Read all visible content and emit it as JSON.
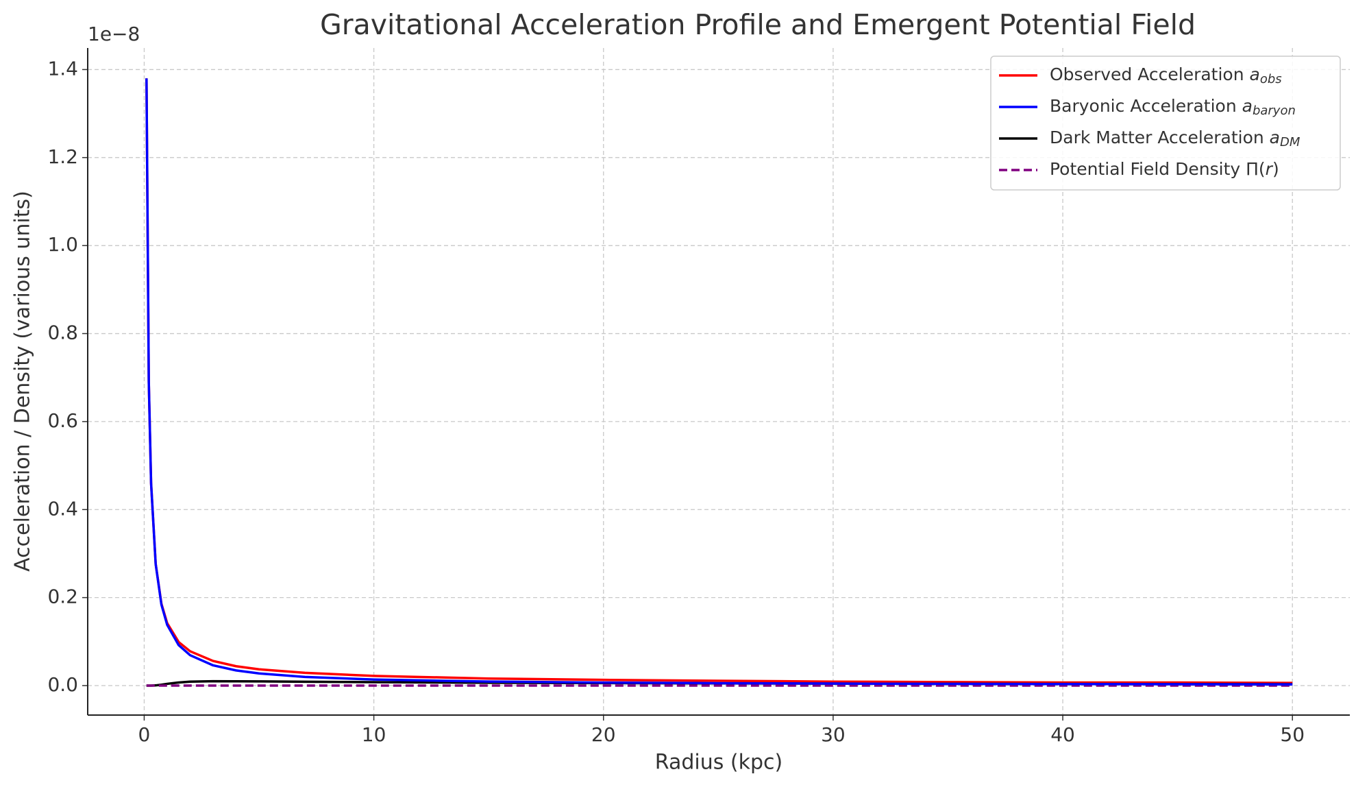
{
  "chart_data": {
    "type": "line",
    "title": "Gravitational Acceleration Profile and Emergent Potential Field",
    "x_label": "Radius (kpc)",
    "y_label": "Acceleration / Density (various units)",
    "y_offset_label": "1e−8",
    "x": [
      0.1,
      0.2,
      0.3,
      0.5,
      0.75,
      1,
      1.5,
      2,
      3,
      4,
      5,
      7,
      10,
      15,
      20,
      25,
      30,
      35,
      40,
      45,
      50
    ],
    "series": [
      {
        "name": "Observed Acceleration a_{obs}",
        "color": "#ff0000",
        "dash": false,
        "values": [
          1.38,
          0.69,
          0.46,
          0.2765,
          0.186,
          0.142,
          0.099,
          0.078,
          0.056,
          0.044,
          0.037,
          0.029,
          0.022,
          0.016,
          0.013,
          0.011,
          0.009,
          0.008,
          0.007,
          0.007,
          0.006
        ]
      },
      {
        "name": "Baryonic Acceleration a_{baryon}",
        "color": "#0000ff",
        "dash": false,
        "values": [
          1.38,
          0.69,
          0.46,
          0.276,
          0.184,
          0.138,
          0.092,
          0.069,
          0.046,
          0.0345,
          0.0276,
          0.0197,
          0.0138,
          0.0092,
          0.0069,
          0.0055,
          0.0046,
          0.0039,
          0.0035,
          0.0031,
          0.0028
        ]
      },
      {
        "name": "Dark Matter Acceleration a_{DM}",
        "color": "#000000",
        "dash": false,
        "values": [
          0,
          0,
          0,
          0.0005,
          0.002,
          0.004,
          0.007,
          0.009,
          0.01,
          0.0098,
          0.0095,
          0.0088,
          0.0078,
          0.0065,
          0.0056,
          0.005,
          0.0045,
          0.0041,
          0.0037,
          0.0034,
          0.0032
        ]
      },
      {
        "name": "Potential Field Density Π(r)",
        "color": "#800080",
        "dash": true,
        "values": [
          0,
          0,
          0,
          0,
          0,
          0,
          0,
          0,
          0,
          0,
          0,
          0,
          0,
          0,
          0,
          0,
          0,
          0,
          0,
          0,
          0
        ]
      }
    ],
    "xlim": [
      -2.46,
      52.5
    ],
    "ylim": [
      -0.067,
      1.449
    ],
    "xticks": [
      0,
      10,
      20,
      30,
      40,
      50
    ],
    "yticks": [
      {
        "value": 0,
        "label": "0.0"
      },
      0.2,
      0.4,
      0.6,
      0.8,
      {
        "value": 1,
        "label": "1.0"
      },
      1.2,
      1.4
    ],
    "grid": true,
    "legend": "upper-right"
  }
}
